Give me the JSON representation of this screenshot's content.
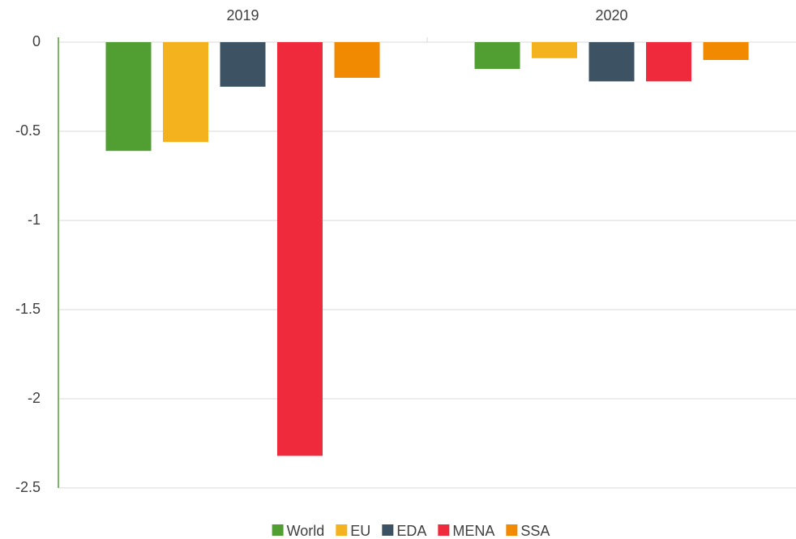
{
  "chart_data": {
    "type": "bar",
    "categories": [
      "2019",
      "2020"
    ],
    "series": [
      {
        "name": "World",
        "color": "#519e32",
        "values": [
          -0.61,
          -0.15
        ]
      },
      {
        "name": "EU",
        "color": "#f5b21f",
        "values": [
          -0.56,
          -0.09
        ]
      },
      {
        "name": "EDA",
        "color": "#3d5262",
        "values": [
          -0.25,
          -0.22
        ]
      },
      {
        "name": "MENA",
        "color": "#ee2a3c",
        "values": [
          -2.32,
          -0.22
        ]
      },
      {
        "name": "SSA",
        "color": "#f28a00",
        "values": [
          -0.2,
          -0.1
        ]
      }
    ],
    "ylim": [
      -2.5,
      0
    ],
    "yticks": [
      0,
      -0.5,
      -1,
      -1.5,
      -2,
      -2.5
    ],
    "grid": true,
    "legend": "bottom"
  }
}
